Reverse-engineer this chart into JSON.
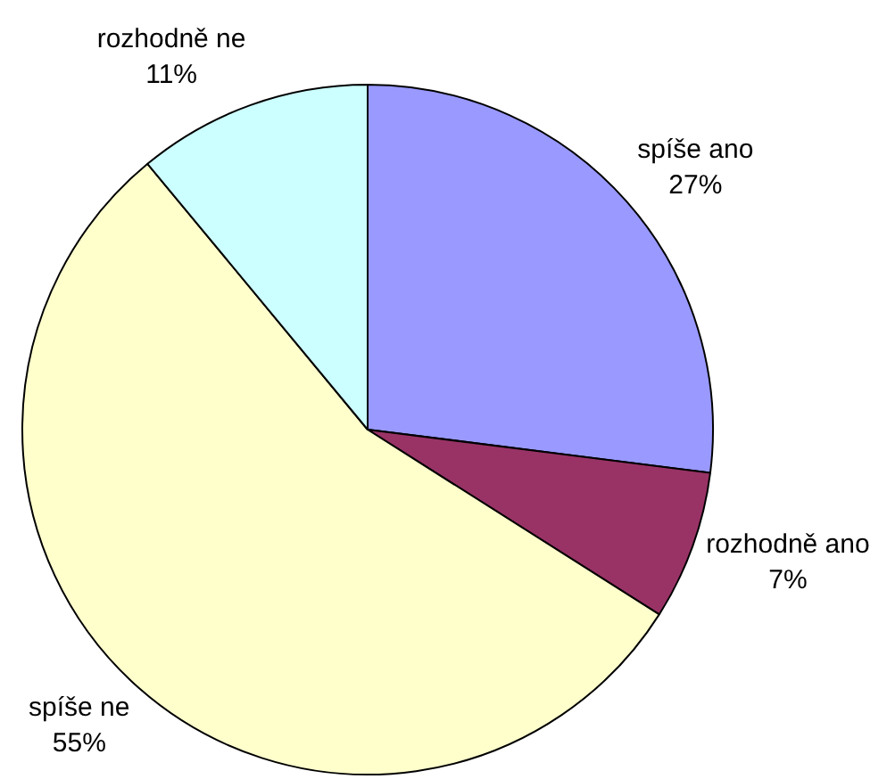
{
  "chart_data": {
    "type": "pie",
    "categories": [
      "spíše ano",
      "rozhodně ano",
      "spíše ne",
      "rozhodně ne"
    ],
    "values": [
      27,
      7,
      55,
      11
    ],
    "colors": [
      "#9999ff",
      "#993366",
      "#ffffcc",
      "#ccffff"
    ],
    "value_labels": [
      "27%",
      "7%",
      "55%",
      "11%"
    ],
    "legend": false
  }
}
